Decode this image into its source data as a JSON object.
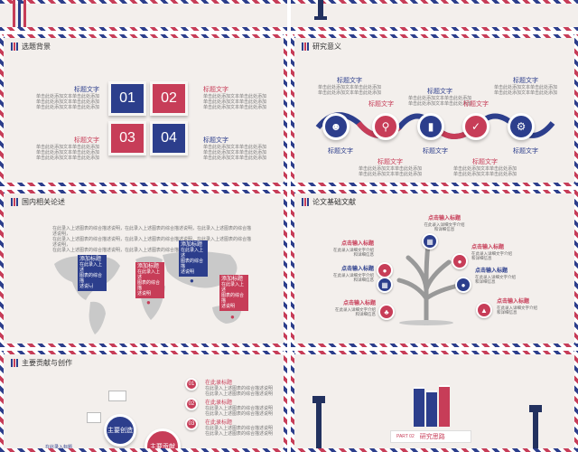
{
  "slides": {
    "s1": {
      "title": "选题背景",
      "tiles": [
        "01",
        "02",
        "03",
        "04"
      ],
      "blocks": [
        {
          "heading": "标题文字",
          "lines": [
            "单击此处添加文本单击此处添加",
            "单击此处添加文本单击此处添加",
            "单击此处添加文本单击此处添加"
          ]
        },
        {
          "heading": "标题文字",
          "lines": [
            "单击此处添加文本单击此处添加",
            "单击此处添加文本单击此处添加",
            "单击此处添加文本单击此处添加"
          ]
        },
        {
          "heading": "标题文字",
          "lines": [
            "单击此处添加文本单击此处添加",
            "单击此处添加文本单击此处添加",
            "单击此处添加文本单击此处添加"
          ]
        },
        {
          "heading": "标题文字",
          "lines": [
            "单击此处添加文本单击此处添加",
            "单击此处添加文本单击此处添加",
            "单击此处添加文本单击此处添加"
          ]
        }
      ]
    },
    "s2": {
      "title": "研究意义",
      "labels": [
        "标题文字",
        "标题文字",
        "标题文字",
        "标题文字",
        "标题文字",
        "标题文字",
        "标题文字",
        "标题文字",
        "标题文字",
        "标题文字"
      ],
      "desc": "单击此处添加文本单击此处添加",
      "icons": [
        "person-icon",
        "search-icon",
        "chart-icon",
        "check-icon",
        "gear-icon"
      ]
    },
    "s3": {
      "title": "国内相关论述",
      "intro": [
        "在此录入上述图表的综合描述说明，在此录入上述图表的综合描述说明，在此录入上述图表的综合描述说明，",
        "在此录入上述图表的综合描述说明，在此录入上述图表的综合描述说明，在此录入上述图表的综合描述说明，",
        "在此录入上述图表的综合描述说明，在此录入上述图表的综合描述说明，"
      ],
      "tags": [
        {
          "title": "添加标题",
          "lines": [
            "在此录入上述",
            "图表的综合描",
            "述说明"
          ]
        },
        {
          "title": "添加标题",
          "lines": [
            "在此录入上述",
            "图表的综合描",
            "述说明"
          ]
        },
        {
          "title": "添加标题",
          "lines": [
            "在此录入上述",
            "图表的综合描",
            "述说明"
          ]
        },
        {
          "title": "添加标题",
          "lines": [
            "在此录入上述",
            "图表的综合描",
            "述说明"
          ]
        }
      ]
    },
    "s4": {
      "title": "论文基础文献",
      "nodes": [
        {
          "heading": "点击输入标题",
          "desc": [
            "在此录入详细文字介绍",
            "和详细信息"
          ]
        },
        {
          "heading": "点击输入标题",
          "desc": [
            "在此录入详细文字介绍",
            "和详细信息"
          ]
        },
        {
          "heading": "点击输入标题",
          "desc": [
            "在此录入详细文字介绍",
            "和详细信息"
          ]
        },
        {
          "heading": "点击输入标题",
          "desc": [
            "在此录入详细文字介绍",
            "和详细信息"
          ]
        },
        {
          "heading": "点击输入标题",
          "desc": [
            "在此录入详细文字介绍",
            "和详细信息"
          ]
        },
        {
          "heading": "点击输入标题",
          "desc": [
            "在此录入详细文字介绍",
            "和详细信息"
          ]
        },
        {
          "heading": "点击输入标题",
          "desc": [
            "在此录入详细文字介绍",
            "和详细信息"
          ]
        }
      ]
    },
    "s5": {
      "title": "主要贡献与创作",
      "gear1": "主要创造",
      "gear2": "主要贡献",
      "items": [
        {
          "num": "01",
          "heading": "在此录标题",
          "lines": [
            "在此录入上述图表的综合描述说明",
            "在此录入上述图表的综合描述说明"
          ]
        },
        {
          "num": "02",
          "heading": "在此录标题",
          "lines": [
            "在此录入上述图表的综合描述说明",
            "在此录入上述图表的综合描述说明"
          ]
        },
        {
          "num": "03",
          "heading": "在此录标题",
          "lines": [
            "在此录入上述图表的综合描述说明",
            "在此录入上述图表的综合描述说明"
          ]
        }
      ],
      "bottom_label": "在此录入标题"
    },
    "s6": {
      "part": "PART 02",
      "title": "研究思路"
    }
  },
  "colors": {
    "blue": "#2c3e8c",
    "red": "#c73d58",
    "bg": "#f3efec"
  }
}
